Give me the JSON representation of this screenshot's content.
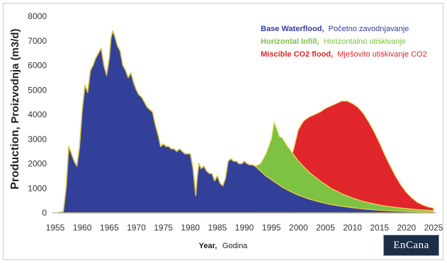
{
  "chart_data": {
    "type": "area",
    "ylabel": {
      "bold": "Production,",
      "normal": "Proizvodnja (m3/d)"
    },
    "xlabel": {
      "bold": "Year,",
      "normal": "Godina"
    },
    "xlim": [
      1955,
      2025
    ],
    "ylim": [
      0,
      8000
    ],
    "x_ticks": [
      "1955",
      "1960",
      "1965",
      "1970",
      "1975",
      "1980",
      "1985",
      "1990",
      "1995",
      "2000",
      "2005",
      "2010",
      "2015",
      "2020",
      "2025"
    ],
    "y_ticks": [
      "0",
      "1000",
      "2000",
      "3000",
      "4000",
      "5000",
      "6000",
      "7000",
      "8000"
    ],
    "legend": [
      {
        "bold": "Base Waterflood,",
        "normal": "Početno zavodnjavanje",
        "color": "#33409a"
      },
      {
        "bold": "Horizontal Infill,",
        "normal": "Horizontalno utiskivanje",
        "color": "#7dc242"
      },
      {
        "bold": "Miscible CO2 flood,",
        "normal": "Mješovito utiskivanje CO2",
        "color": "#e0262b"
      }
    ],
    "series": [
      {
        "name": "Base Waterflood",
        "color": "#33409a",
        "x": [
          1955.5,
          1956.5,
          1957,
          1957.5,
          1958,
          1958.5,
          1959,
          1959.5,
          1960,
          1960.5,
          1961,
          1961.5,
          1962,
          1962.5,
          1963,
          1963.5,
          1964,
          1964.5,
          1965,
          1965.3,
          1965.6,
          1966,
          1966.5,
          1967,
          1967.5,
          1968,
          1968.5,
          1969,
          1969.5,
          1970,
          1970.5,
          1971,
          1971.5,
          1972,
          1972.5,
          1973,
          1973.5,
          1974,
          1974.5,
          1975,
          1975.5,
          1976,
          1976.5,
          1977,
          1977.5,
          1978,
          1978.5,
          1979,
          1979.5,
          1980,
          1980.5,
          1981,
          1981.3,
          1981.6,
          1982,
          1982.5,
          1983,
          1983.5,
          1984,
          1984.5,
          1985,
          1985.5,
          1986,
          1986.5,
          1987,
          1987.5,
          1988,
          1988.5,
          1989,
          1989.5,
          1990,
          1990.5,
          1991,
          1991.5,
          1992,
          1993,
          1994,
          1995,
          1996,
          1997,
          1998,
          1999,
          2000,
          2002,
          2004,
          2006,
          2008,
          2010,
          2012,
          2014,
          2016,
          2018,
          2020,
          2022,
          2024,
          2025
        ],
        "y": [
          0,
          50,
          1000,
          2700,
          2400,
          2100,
          1900,
          2700,
          4200,
          5200,
          4900,
          5800,
          6000,
          6300,
          6500,
          6700,
          6000,
          5600,
          6300,
          7100,
          7400,
          7200,
          6800,
          6600,
          6000,
          5800,
          5500,
          5700,
          5300,
          5000,
          4800,
          4700,
          4500,
          4300,
          4200,
          4100,
          3600,
          3200,
          2700,
          2800,
          2700,
          2700,
          2600,
          2600,
          2500,
          2600,
          2500,
          2400,
          2400,
          2400,
          1800,
          700,
          1500,
          2000,
          1800,
          1900,
          1700,
          1600,
          1600,
          1300,
          1500,
          1200,
          1100,
          1400,
          2100,
          2200,
          2100,
          2100,
          2000,
          2000,
          2100,
          2000,
          1950,
          1950,
          1900,
          1700,
          1500,
          1350,
          1200,
          1050,
          930,
          820,
          720,
          560,
          440,
          340,
          270,
          210,
          160,
          125,
          95,
          75,
          60,
          45,
          35,
          30
        ]
      },
      {
        "name": "Horizontal Infill",
        "color": "#7dc242",
        "x": [
          1992,
          1993,
          1994,
          1995,
          1995.5,
          1996,
          1996.5,
          1997,
          1998,
          1999,
          2000,
          2002,
          2004,
          2006,
          2008,
          2010,
          2012,
          2014,
          2016,
          2018,
          2020,
          2022,
          2024,
          2025
        ],
        "y": [
          1900,
          2000,
          2400,
          3000,
          3700,
          3400,
          3100,
          3050,
          2700,
          2400,
          2100,
          1650,
          1300,
          1000,
          780,
          600,
          460,
          360,
          280,
          220,
          170,
          130,
          100,
          85
        ]
      },
      {
        "name": "Miscible CO2 flood",
        "color": "#e0262b",
        "x": [
          1998.5,
          1999,
          2000,
          2001,
          2002,
          2003,
          2004,
          2005,
          2006,
          2007,
          2008,
          2009,
          2010,
          2011,
          2012,
          2013,
          2014,
          2015,
          2016,
          2017,
          2018,
          2019,
          2020,
          2021,
          2022,
          2023,
          2024,
          2025
        ],
        "y": [
          2200,
          2500,
          3400,
          3750,
          3900,
          4000,
          4100,
          4250,
          4350,
          4450,
          4550,
          4550,
          4450,
          4300,
          4050,
          3700,
          3300,
          2850,
          2350,
          1900,
          1480,
          1120,
          820,
          600,
          430,
          320,
          240,
          190
        ]
      }
    ]
  },
  "logo": {
    "text": "EnCana"
  }
}
